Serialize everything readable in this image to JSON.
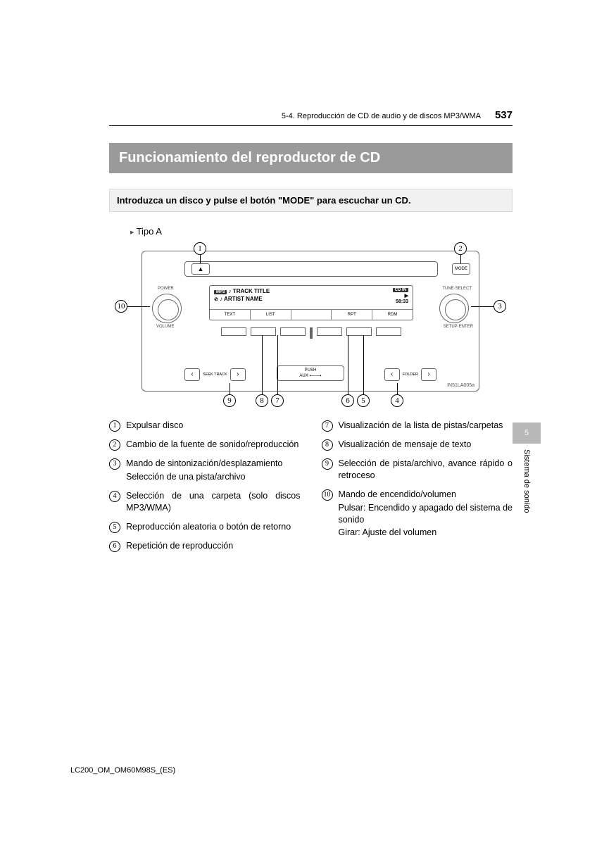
{
  "header": {
    "section": "5-4. Reproducción de CD de audio y de discos MP3/WMA",
    "page": "537"
  },
  "title": "Funcionamiento del reproductor de CD",
  "instruction": "Introduzca un disco y pulse el botón \"MODE\" para escuchar un CD.",
  "type_label": "Tipo A",
  "diagram": {
    "eject": "▲",
    "mode": "MODE",
    "power": "POWER",
    "volume": "VOLUME",
    "tune": "TUNE·SELECT",
    "setup": "SETUP·ENTER",
    "mp3": "MP3",
    "track": "♪ TRACK TITLE",
    "artist": "♪ ARTIST NAME",
    "cdin": "CD IN",
    "time": "58:33",
    "b_text": "TEXT",
    "b_list": "LIST",
    "b_blank": "",
    "b_rpt": "RPT",
    "b_rdm": "RDM",
    "seek": "SEEK\nTRACK",
    "folder": "FOLDER",
    "push": "PUSH",
    "aux": "AUX ⟵⟶",
    "code": "IN51LA005a"
  },
  "legend_left": [
    {
      "n": "1",
      "t": "Expulsar disco"
    },
    {
      "n": "2",
      "t": "Cambio de la fuente de sonido/reproducción"
    },
    {
      "n": "3",
      "t": "Mando de sintonización/desplazamiento",
      "s": "Selección de una pista/archivo"
    },
    {
      "n": "4",
      "t": "Selección de una carpeta (solo discos MP3/WMA)"
    },
    {
      "n": "5",
      "t": "Reproducción aleatoria o botón de retorno"
    },
    {
      "n": "6",
      "t": "Repetición de reproducción"
    }
  ],
  "legend_right": [
    {
      "n": "7",
      "t": "Visualización de la lista de pistas/carpetas"
    },
    {
      "n": "8",
      "t": "Visualización de mensaje de texto"
    },
    {
      "n": "9",
      "t": "Selección de pista/archivo, avance rápido o retroceso"
    },
    {
      "n": "10",
      "t": "Mando de encendido/volumen",
      "s": "Pulsar: Encendido y apagado del sistema de sonido",
      "s2": "Girar: Ajuste del volumen"
    }
  ],
  "sidetab": {
    "num": "5",
    "label": "Sistema de sonido"
  },
  "footer": "LC200_OM_OM60M98S_(ES)"
}
